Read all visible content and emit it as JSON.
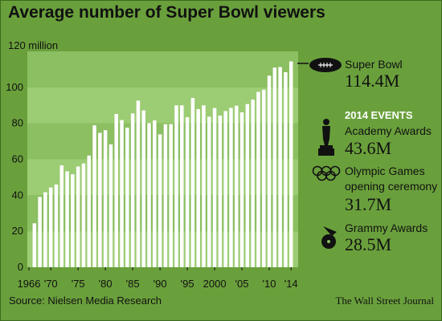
{
  "chart_data": {
    "type": "bar",
    "title": "Average number of Super Bowl viewers",
    "unit_label": "120 million",
    "yticks": [
      0,
      20,
      40,
      60,
      80,
      100
    ],
    "ylim": [
      0,
      120
    ],
    "xlim": [
      1966,
      2015
    ],
    "xtick_labels": [
      {
        "year": 1966,
        "label": "1966"
      },
      {
        "year": 1970,
        "label": "'70"
      },
      {
        "year": 1975,
        "label": "'75"
      },
      {
        "year": 1980,
        "label": "'80"
      },
      {
        "year": 1985,
        "label": "'85"
      },
      {
        "year": 1990,
        "label": "'90"
      },
      {
        "year": 1995,
        "label": "'95"
      },
      {
        "year": 2000,
        "label": "2000"
      },
      {
        "year": 2005,
        "label": "'05"
      },
      {
        "year": 2010,
        "label": "'10"
      },
      {
        "year": 2014,
        "label": "'14"
      }
    ],
    "categories": [
      1967,
      1968,
      1969,
      1970,
      1971,
      1972,
      1973,
      1974,
      1975,
      1976,
      1977,
      1978,
      1979,
      1980,
      1981,
      1982,
      1983,
      1984,
      1985,
      1986,
      1987,
      1988,
      1989,
      1990,
      1991,
      1992,
      1993,
      1994,
      1995,
      1996,
      1997,
      1998,
      1999,
      2000,
      2001,
      2002,
      2003,
      2004,
      2005,
      2006,
      2007,
      2008,
      2009,
      2010,
      2011,
      2012,
      2013,
      2014
    ],
    "values": [
      24.4,
      39.1,
      41.7,
      44.3,
      46.0,
      56.6,
      53.3,
      51.7,
      56.0,
      57.7,
      62.1,
      78.9,
      74.7,
      76.2,
      68.3,
      85.2,
      81.8,
      77.6,
      85.5,
      92.6,
      87.2,
      80.1,
      81.6,
      73.9,
      79.5,
      79.6,
      90.0,
      90.0,
      83.4,
      94.1,
      87.9,
      90.0,
      83.7,
      88.5,
      84.3,
      86.8,
      88.6,
      89.8,
      86.1,
      90.7,
      93.2,
      97.5,
      98.7,
      106.5,
      111.0,
      111.3,
      108.4,
      114.4
    ]
  },
  "annotations": {
    "super_bowl": {
      "label": "Super Bowl",
      "value": "114.4M",
      "icon": "football-icon"
    },
    "events_heading": "2014 EVENTS",
    "academy": {
      "label": "Academy Awards",
      "value": "43.6M",
      "icon": "oscar-statue-icon"
    },
    "olympic": {
      "label1": "Olympic Games",
      "label2": "opening ceremony",
      "value": "31.7M",
      "icon": "olympic-rings-icon"
    },
    "grammy": {
      "label": "Grammy Awards",
      "value": "28.5M",
      "icon": "gramophone-icon"
    }
  },
  "footer": {
    "source": "Source: Nielsen Media Research",
    "credit": "The Wall Street Journal"
  },
  "colors": {
    "background": "#6aa03c",
    "band_light": "#9ccc74",
    "band_dark": "#8bbf62",
    "bar": "#ffffff"
  }
}
